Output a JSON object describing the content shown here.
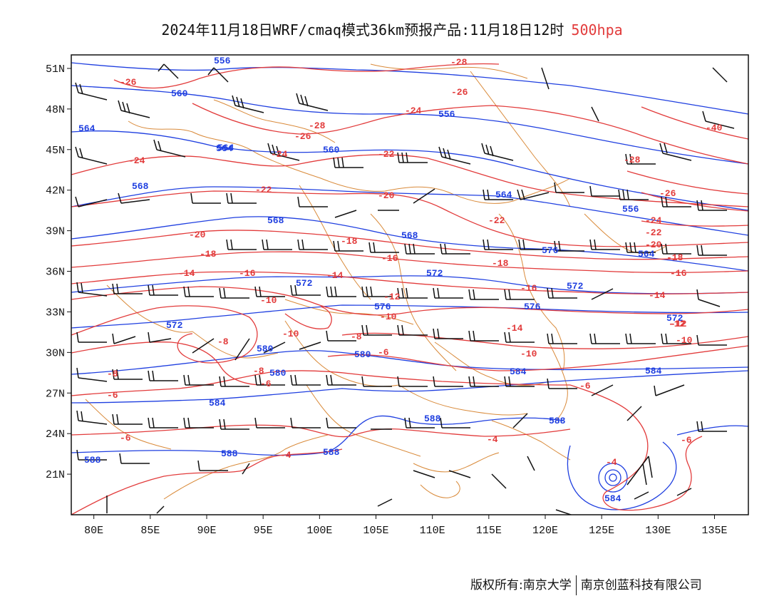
{
  "title": {
    "main": "2024年11月18日WRF/cmaq模式36km预报产品:11月18日12时",
    "level": "500hpa"
  },
  "colors": {
    "height_contour": "#1f3fe0",
    "temperature_contour": "#e23b3b",
    "boundary": "#d98a3a",
    "wind_barb": "#111111"
  },
  "map": {
    "lon_range": [
      78,
      138
    ],
    "lat_range": [
      18,
      52
    ],
    "lat_ticks": [
      "51N",
      "48N",
      "45N",
      "42N",
      "39N",
      "36N",
      "33N",
      "30N",
      "27N",
      "24N",
      "21N"
    ],
    "lon_ticks": [
      "80E",
      "85E",
      "90E",
      "95E",
      "100E",
      "105E",
      "110E",
      "115E",
      "120E",
      "125E",
      "130E",
      "135E"
    ]
  },
  "contours": {
    "height_labels": [
      "556",
      "560",
      "564",
      "556",
      "568",
      "564",
      "564",
      "568",
      "568",
      "572",
      "572",
      "572",
      "576",
      "576",
      "572",
      "580",
      "580",
      "584",
      "584",
      "584",
      "588",
      "588",
      "588",
      "588",
      "588",
      "584",
      "564",
      "560",
      "556",
      "564",
      "572",
      "576",
      "580"
    ],
    "temperature_labels": [
      "-26",
      "-28",
      "-26",
      "-24",
      "-28",
      "-26",
      "-24",
      "-22",
      "-24",
      "-22",
      "-20",
      "-20",
      "-22",
      "-18",
      "-18",
      "-16",
      "-18",
      "-14",
      "-16",
      "-14",
      "-12",
      "-16",
      "-10",
      "-10",
      "-8",
      "-14",
      "-12",
      "-10",
      "-10",
      "-8",
      "-6",
      "-8",
      "-6",
      "-6",
      "-4",
      "-4",
      "-4",
      "-6",
      "-6",
      "-10",
      "-12",
      "-14",
      "-16",
      "-18",
      "-20",
      "-22",
      "-24",
      "-26",
      "-28",
      "-40",
      "-8",
      "-6"
    ]
  },
  "footer": {
    "left": "版权所有:南京大学",
    "right": "南京创蓝科技有限公司"
  }
}
